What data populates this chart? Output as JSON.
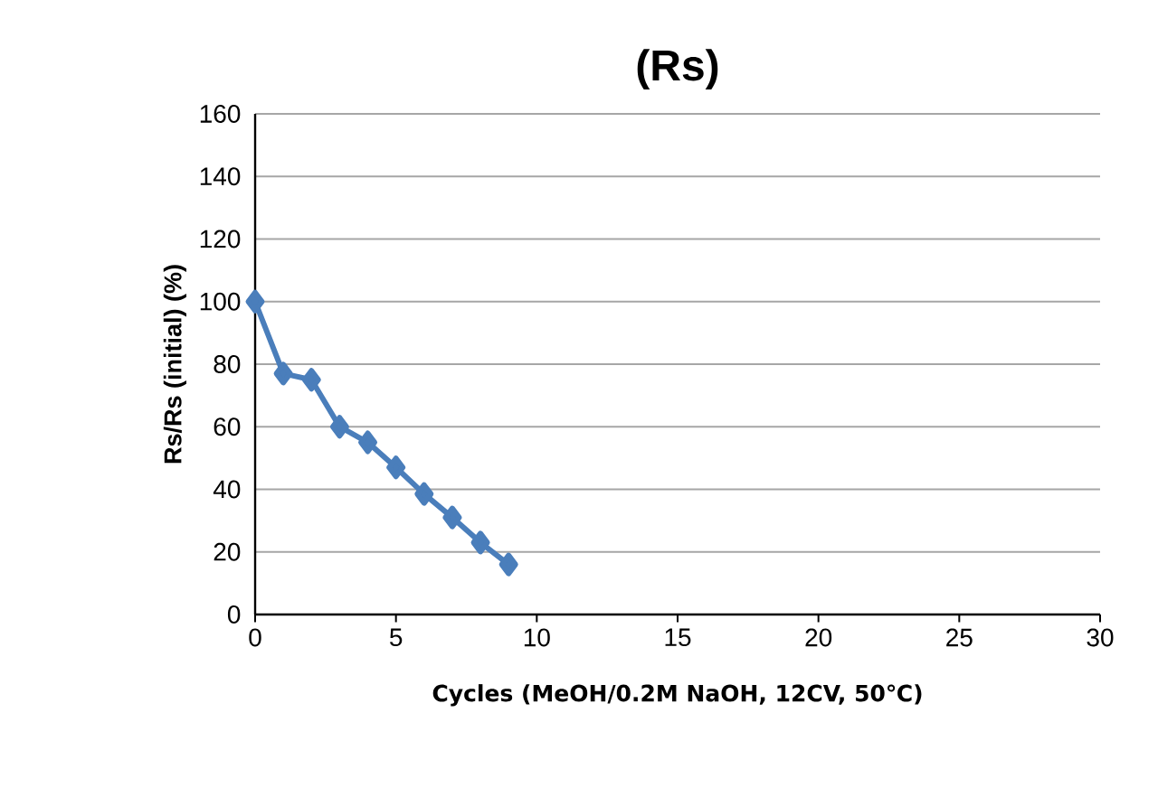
{
  "chart_data": {
    "type": "line",
    "title": "(Rs)",
    "xlabel": "Cycles (MeOH/0.2M NaOH, 12CV, 50℃)",
    "ylabel": "Rs/Rs (initial) (%)",
    "x": [
      0,
      1,
      2,
      3,
      4,
      5,
      6,
      7,
      8,
      9
    ],
    "series": [
      {
        "color": "#4a7ebb",
        "values": [
          100,
          77,
          75,
          60,
          55,
          47,
          38.5,
          31,
          23,
          16
        ]
      }
    ],
    "xlim": [
      0,
      30
    ],
    "xticks": [
      0,
      5,
      10,
      15,
      20,
      25,
      30
    ],
    "ylim": [
      0,
      160
    ],
    "yticks": [
      0,
      20,
      40,
      60,
      80,
      100,
      120,
      140,
      160
    ],
    "grid": "y",
    "marker": "diamond",
    "line_style": "solid"
  }
}
